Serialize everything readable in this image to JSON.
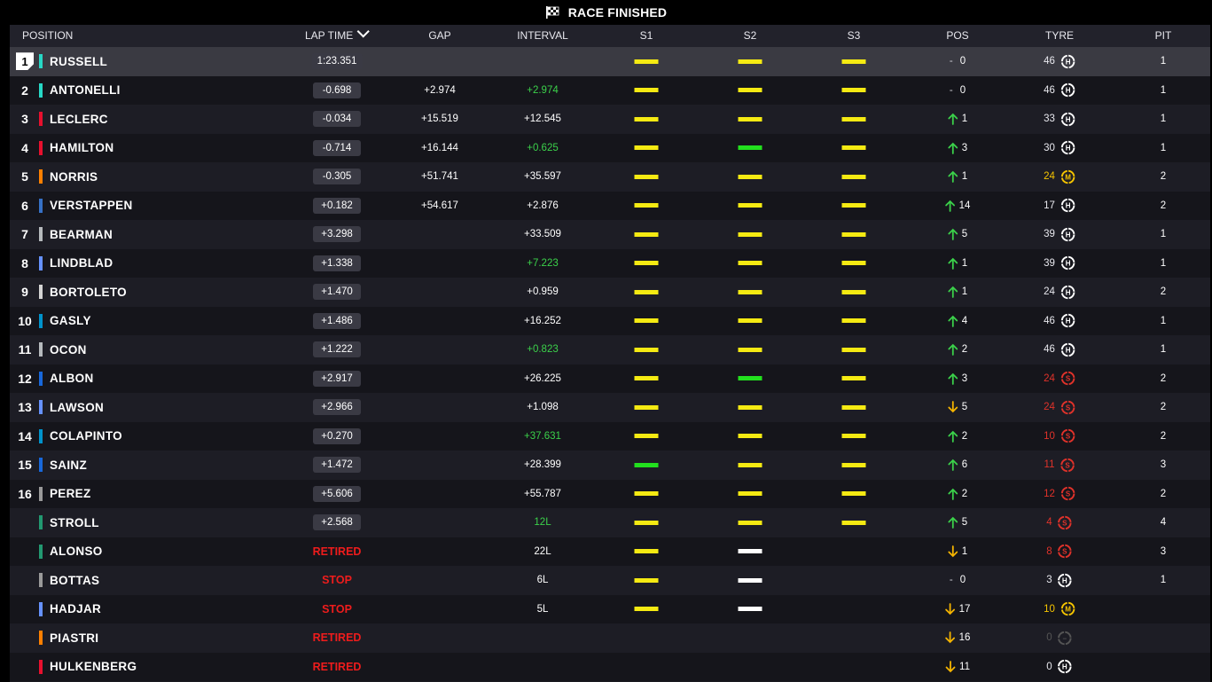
{
  "title": "RACE FINISHED",
  "columns": {
    "position": "POSITION",
    "lap_time": "LAP TIME",
    "gap": "GAP",
    "interval": "INTERVAL",
    "s1": "S1",
    "s2": "S2",
    "s3": "S3",
    "pos": "POS",
    "tyre": "TYRE",
    "pit": "PIT"
  },
  "colors": {
    "sector_yellow": "#f5ea12",
    "sector_green": "#22e01e",
    "sector_white": "#ffffff",
    "delta_green": "#3bd14a",
    "arrow_up": "#3bd14a",
    "arrow_down": "#f5b400",
    "retired_red": "#ee1c1c",
    "tyre_hard": "#ffffff",
    "tyre_medium": "#f5c400",
    "tyre_soft": "#e0322a",
    "tyre_unknown": "#555555"
  },
  "rows": [
    {
      "pos": "1",
      "team": "#27d8c6",
      "driver": "RUSSELL",
      "lap": "1:23.351",
      "lap_style": "pill",
      "gap": "",
      "interval": "",
      "interval_green": false,
      "s1": "y",
      "s2": "y",
      "s3": "y",
      "pos_dir": "same",
      "pos_change": "0",
      "tyre_age": "46",
      "tyre": "H",
      "pit": "1"
    },
    {
      "pos": "2",
      "team": "#27d8c6",
      "driver": "ANTONELLI",
      "lap": "-0.698",
      "lap_style": "pill",
      "gap": "+2.974",
      "interval": "+2.974",
      "interval_green": true,
      "s1": "y",
      "s2": "y",
      "s3": "y",
      "pos_dir": "same",
      "pos_change": "0",
      "tyre_age": "46",
      "tyre": "H",
      "pit": "1"
    },
    {
      "pos": "3",
      "team": "#e8102e",
      "driver": "LECLERC",
      "lap": "-0.034",
      "lap_style": "pill",
      "gap": "+15.519",
      "interval": "+12.545",
      "interval_green": false,
      "s1": "y",
      "s2": "y",
      "s3": "y",
      "pos_dir": "up",
      "pos_change": "1",
      "tyre_age": "33",
      "tyre": "H",
      "pit": "1"
    },
    {
      "pos": "4",
      "team": "#e8102e",
      "driver": "HAMILTON",
      "lap": "-0.714",
      "lap_style": "pill",
      "gap": "+16.144",
      "interval": "+0.625",
      "interval_green": true,
      "s1": "y",
      "s2": "g",
      "s3": "y",
      "pos_dir": "up",
      "pos_change": "3",
      "tyre_age": "30",
      "tyre": "H",
      "pit": "1"
    },
    {
      "pos": "5",
      "team": "#ff8000",
      "driver": "NORRIS",
      "lap": "-0.305",
      "lap_style": "pill",
      "gap": "+51.741",
      "interval": "+35.597",
      "interval_green": false,
      "s1": "y",
      "s2": "y",
      "s3": "y",
      "pos_dir": "up",
      "pos_change": "1",
      "tyre_age": "24",
      "tyre": "M",
      "pit": "2"
    },
    {
      "pos": "6",
      "team": "#3671c6",
      "driver": "VERSTAPPEN",
      "lap": "+0.182",
      "lap_style": "pill",
      "gap": "+54.617",
      "interval": "+2.876",
      "interval_green": false,
      "s1": "y",
      "s2": "y",
      "s3": "y",
      "pos_dir": "up",
      "pos_change": "14",
      "tyre_age": "17",
      "tyre": "H",
      "pit": "2"
    },
    {
      "pos": "7",
      "team": "#b6babd",
      "driver": "BEARMAN",
      "lap": "+3.298",
      "lap_style": "pill",
      "gap": "",
      "interval": "+33.509",
      "interval_green": false,
      "s1": "y",
      "s2": "y",
      "s3": "y",
      "pos_dir": "up",
      "pos_change": "5",
      "tyre_age": "39",
      "tyre": "H",
      "pit": "1"
    },
    {
      "pos": "8",
      "team": "#6692ff",
      "driver": "LINDBLAD",
      "lap": "+1.338",
      "lap_style": "pill",
      "gap": "",
      "interval": "+7.223",
      "interval_green": true,
      "s1": "y",
      "s2": "y",
      "s3": "y",
      "pos_dir": "up",
      "pos_change": "1",
      "tyre_age": "39",
      "tyre": "H",
      "pit": "1"
    },
    {
      "pos": "9",
      "team": "#d4d4d4",
      "driver": "BORTOLETO",
      "lap": "+1.470",
      "lap_style": "pill",
      "gap": "",
      "interval": "+0.959",
      "interval_green": false,
      "s1": "y",
      "s2": "y",
      "s3": "y",
      "pos_dir": "up",
      "pos_change": "1",
      "tyre_age": "24",
      "tyre": "H",
      "pit": "2"
    },
    {
      "pos": "10",
      "team": "#0093cc",
      "driver": "GASLY",
      "lap": "+1.486",
      "lap_style": "pill",
      "gap": "",
      "interval": "+16.252",
      "interval_green": false,
      "s1": "y",
      "s2": "y",
      "s3": "y",
      "pos_dir": "up",
      "pos_change": "4",
      "tyre_age": "46",
      "tyre": "H",
      "pit": "1"
    },
    {
      "pos": "11",
      "team": "#b6babd",
      "driver": "OCON",
      "lap": "+1.222",
      "lap_style": "pill",
      "gap": "",
      "interval": "+0.823",
      "interval_green": true,
      "s1": "y",
      "s2": "y",
      "s3": "y",
      "pos_dir": "up",
      "pos_change": "2",
      "tyre_age": "46",
      "tyre": "H",
      "pit": "1"
    },
    {
      "pos": "12",
      "team": "#1868db",
      "driver": "ALBON",
      "lap": "+2.917",
      "lap_style": "pill",
      "gap": "",
      "interval": "+26.225",
      "interval_green": false,
      "s1": "y",
      "s2": "g",
      "s3": "y",
      "pos_dir": "up",
      "pos_change": "3",
      "tyre_age": "24",
      "tyre": "S",
      "pit": "2"
    },
    {
      "pos": "13",
      "team": "#6692ff",
      "driver": "LAWSON",
      "lap": "+2.966",
      "lap_style": "pill",
      "gap": "",
      "interval": "+1.098",
      "interval_green": false,
      "s1": "y",
      "s2": "y",
      "s3": "y",
      "pos_dir": "down",
      "pos_change": "5",
      "tyre_age": "24",
      "tyre": "S",
      "pit": "2"
    },
    {
      "pos": "14",
      "team": "#0093cc",
      "driver": "COLAPINTO",
      "lap": "+0.270",
      "lap_style": "pill",
      "gap": "",
      "interval": "+37.631",
      "interval_green": true,
      "s1": "y",
      "s2": "y",
      "s3": "y",
      "pos_dir": "up",
      "pos_change": "2",
      "tyre_age": "10",
      "tyre": "S",
      "pit": "2"
    },
    {
      "pos": "15",
      "team": "#1868db",
      "driver": "SAINZ",
      "lap": "+1.472",
      "lap_style": "pill",
      "gap": "",
      "interval": "+28.399",
      "interval_green": false,
      "s1": "g",
      "s2": "y",
      "s3": "y",
      "pos_dir": "up",
      "pos_change": "6",
      "tyre_age": "11",
      "tyre": "S",
      "pit": "3"
    },
    {
      "pos": "16",
      "team": "#9a9a9a",
      "driver": "PEREZ",
      "lap": "+5.606",
      "lap_style": "pill",
      "gap": "",
      "interval": "+55.787",
      "interval_green": false,
      "s1": "y",
      "s2": "y",
      "s3": "y",
      "pos_dir": "up",
      "pos_change": "2",
      "tyre_age": "12",
      "tyre": "S",
      "pit": "2"
    },
    {
      "pos": "",
      "team": "#229971",
      "driver": "STROLL",
      "lap": "+2.568",
      "lap_style": "pill",
      "gap": "",
      "interval": "12L",
      "interval_green": true,
      "s1": "y",
      "s2": "y",
      "s3": "y",
      "pos_dir": "up",
      "pos_change": "5",
      "tyre_age": "4",
      "tyre": "S",
      "pit": "4"
    },
    {
      "pos": "",
      "team": "#229971",
      "driver": "ALONSO",
      "lap": "RETIRED",
      "lap_style": "red",
      "gap": "",
      "interval": "22L",
      "interval_green": false,
      "s1": "y",
      "s2": "w",
      "s3": "",
      "pos_dir": "down",
      "pos_change": "1",
      "tyre_age": "8",
      "tyre": "S",
      "pit": "3"
    },
    {
      "pos": "",
      "team": "#9a9a9a",
      "driver": "BOTTAS",
      "lap": "STOP",
      "lap_style": "red",
      "gap": "",
      "interval": "6L",
      "interval_green": false,
      "s1": "y",
      "s2": "w",
      "s3": "",
      "pos_dir": "same",
      "pos_change": "0",
      "tyre_age": "3",
      "tyre": "H",
      "pit": "1"
    },
    {
      "pos": "",
      "team": "#6692ff",
      "driver": "HADJAR",
      "lap": "STOP",
      "lap_style": "red",
      "gap": "",
      "interval": "5L",
      "interval_green": false,
      "s1": "y",
      "s2": "w",
      "s3": "",
      "pos_dir": "down",
      "pos_change": "17",
      "tyre_age": "10",
      "tyre": "M",
      "pit": ""
    },
    {
      "pos": "",
      "team": "#ff8000",
      "driver": "PIASTRI",
      "lap": "RETIRED",
      "lap_style": "red",
      "gap": "",
      "interval": "",
      "interval_green": false,
      "s1": "",
      "s2": "",
      "s3": "",
      "pos_dir": "down",
      "pos_change": "16",
      "tyre_age": "0",
      "tyre": "U",
      "pit": ""
    },
    {
      "pos": "",
      "team": "#e8102e",
      "driver": "HULKENBERG",
      "lap": "RETIRED",
      "lap_style": "red",
      "gap": "",
      "interval": "",
      "interval_green": false,
      "s1": "",
      "s2": "",
      "s3": "",
      "pos_dir": "down",
      "pos_change": "11",
      "tyre_age": "0",
      "tyre": "H",
      "pit": ""
    }
  ]
}
